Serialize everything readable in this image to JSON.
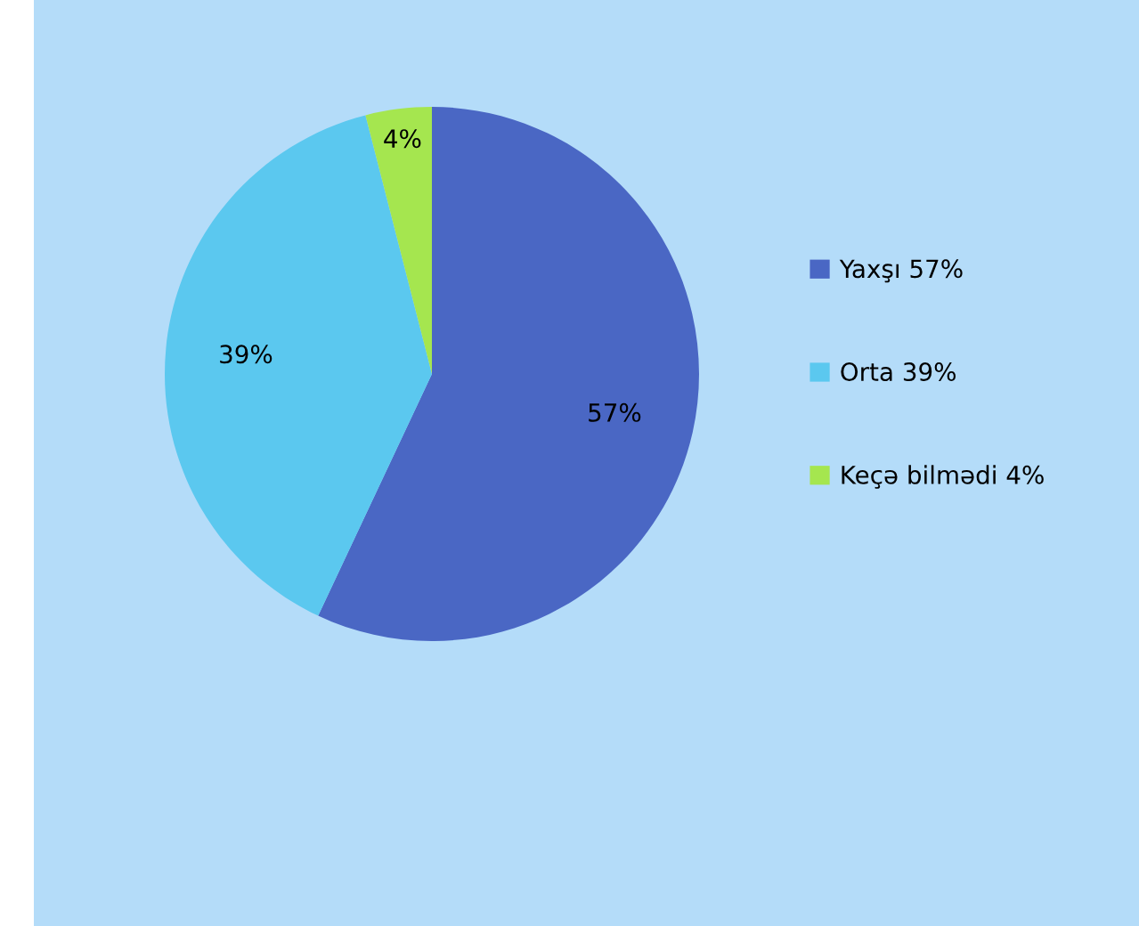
{
  "chart_data": {
    "type": "pie",
    "categories": [
      "Yaxşı 57%",
      "Orta 39%",
      "Keçə bilmədi 4%"
    ],
    "values": [
      57,
      39,
      4
    ],
    "colors": [
      "#4a67c4",
      "#5bc8ef",
      "#a5e64f"
    ],
    "value_labels": [
      "57%",
      "39%",
      "4%"
    ],
    "legend": "right"
  }
}
